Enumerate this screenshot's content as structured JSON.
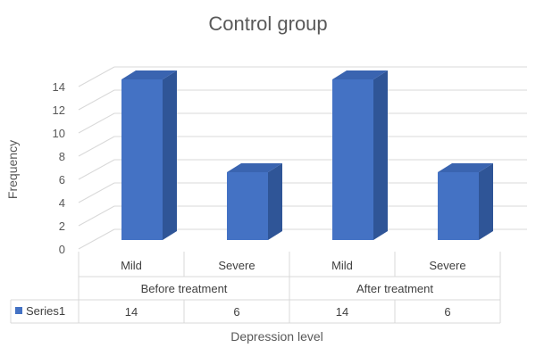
{
  "chart_data": {
    "type": "bar",
    "title": "Control group",
    "xlabel": "Depression level",
    "ylabel": "Frequency",
    "ylim": [
      0,
      14
    ],
    "yticks": [
      0,
      2,
      4,
      6,
      8,
      10,
      12,
      14
    ],
    "grid": true,
    "categories": [
      {
        "label": "Mild",
        "group": "Before treatment"
      },
      {
        "label": "Severe",
        "group": "Before treatment"
      },
      {
        "label": "Mild",
        "group": "After treatment"
      },
      {
        "label": "Severe",
        "group": "After treatment"
      }
    ],
    "groups": [
      "Before treatment",
      "After treatment"
    ],
    "series": [
      {
        "name": "Series1",
        "values": [
          14,
          6,
          14,
          6
        ],
        "color": "#4472c4"
      }
    ],
    "data_table": true
  }
}
